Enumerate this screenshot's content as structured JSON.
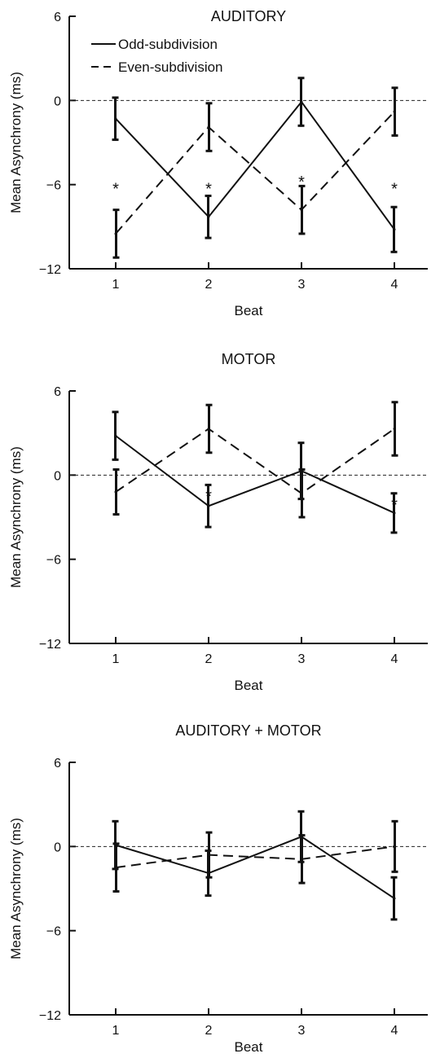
{
  "chart_data": [
    {
      "type": "line",
      "title": "AUDITORY",
      "xlabel": "Beat",
      "ylabel": "Mean Asynchrony (ms)",
      "categories": [
        "1",
        "2",
        "3",
        "4"
      ],
      "ylim": [
        -12,
        6
      ],
      "yticks": [
        "6",
        "0",
        "−6",
        "−12"
      ],
      "reference_line": 0,
      "legend": {
        "position": "top-left"
      },
      "series": [
        {
          "name": "Odd-subdivision",
          "style": "solid",
          "values": [
            -1.3,
            -8.3,
            -0.1,
            -9.2
          ],
          "error": [
            1.5,
            1.5,
            1.7,
            1.6
          ]
        },
        {
          "name": "Even-subdivision",
          "style": "dashed",
          "values": [
            -9.5,
            -1.9,
            -7.8,
            -0.8
          ],
          "error": [
            1.7,
            1.7,
            1.7,
            1.7
          ]
        }
      ],
      "annotations": [
        {
          "text": "*",
          "x": "1",
          "y": -6.0
        },
        {
          "text": "*",
          "x": "2",
          "y": -6.0
        },
        {
          "text": "*",
          "x": "3",
          "y": -5.5
        },
        {
          "text": "*",
          "x": "4",
          "y": -6.0
        }
      ]
    },
    {
      "type": "line",
      "title": "MOTOR",
      "xlabel": "Beat",
      "ylabel": "Mean Asynchrony (ms)",
      "categories": [
        "1",
        "2",
        "3",
        "4"
      ],
      "ylim": [
        -12,
        6
      ],
      "yticks": [
        "6",
        "0",
        "−6",
        "−12"
      ],
      "reference_line": 0,
      "series": [
        {
          "name": "Odd-subdivision",
          "style": "solid",
          "values": [
            2.8,
            -2.2,
            0.3,
            -2.7
          ],
          "error": [
            1.7,
            1.5,
            2.0,
            1.4
          ]
        },
        {
          "name": "Even-subdivision",
          "style": "dashed",
          "values": [
            -1.2,
            3.3,
            -1.3,
            3.3
          ],
          "error": [
            1.6,
            1.7,
            1.7,
            1.9
          ]
        }
      ],
      "annotations": [
        {
          "text": "*",
          "x": "2",
          "y": -1.2
        },
        {
          "text": "*",
          "x": "4",
          "y": -1.8
        }
      ]
    },
    {
      "type": "line",
      "title": "AUDITORY + MOTOR",
      "xlabel": "Beat",
      "ylabel": "Mean Asynchrony (ms)",
      "categories": [
        "1",
        "2",
        "3",
        "4"
      ],
      "ylim": [
        -12,
        6
      ],
      "yticks": [
        "6",
        "0",
        "−6",
        "−12"
      ],
      "reference_line": 0,
      "series": [
        {
          "name": "Odd-subdivision",
          "style": "solid",
          "values": [
            0.1,
            -1.9,
            0.7,
            -3.7
          ],
          "error": [
            1.7,
            1.6,
            1.8,
            1.5
          ]
        },
        {
          "name": "Even-subdivision",
          "style": "dashed",
          "values": [
            -1.5,
            -0.6,
            -0.9,
            0.0
          ],
          "error": [
            1.7,
            1.6,
            1.7,
            1.8
          ]
        }
      ],
      "annotations": []
    }
  ]
}
